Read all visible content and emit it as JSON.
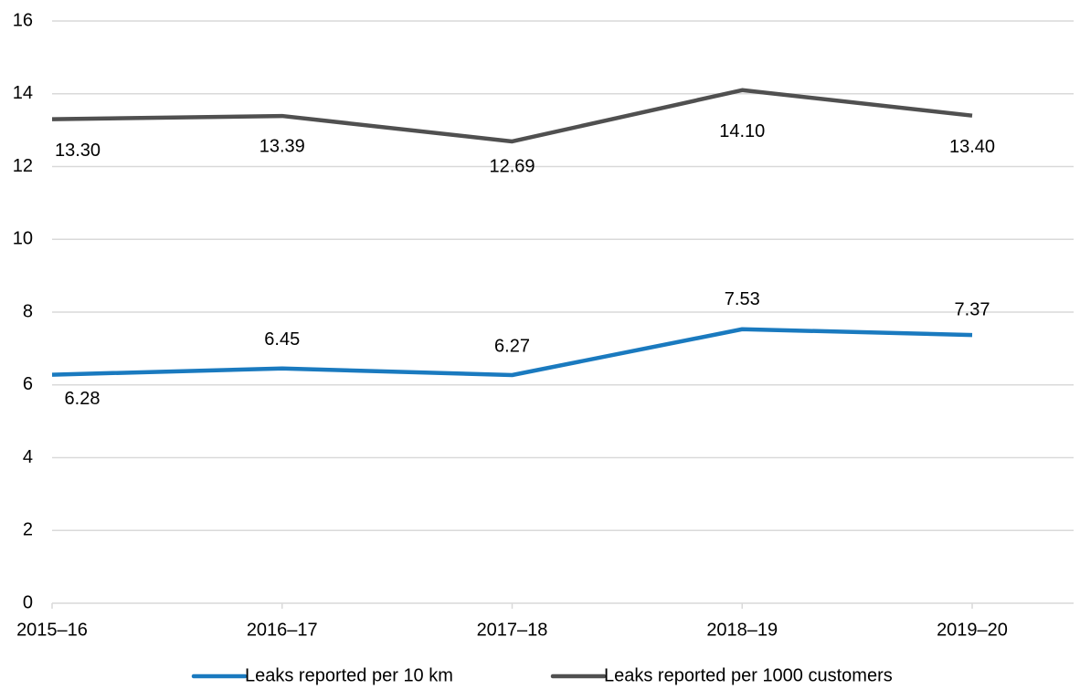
{
  "chart_data": {
    "type": "line",
    "categories": [
      "2015–16",
      "2016–17",
      "2017–18",
      "2018–19",
      "2019–20"
    ],
    "series": [
      {
        "name": "Leaks reported per 10 km",
        "color": "#1a7abf",
        "values": [
          6.28,
          6.45,
          6.27,
          7.53,
          7.37
        ]
      },
      {
        "name": "Leaks reported per 1000 customers",
        "color": "#505050",
        "values": [
          13.3,
          13.39,
          12.69,
          14.1,
          13.4
        ],
        "value_labels": [
          "13.30",
          "13.39",
          "12.69",
          "14.10",
          "13.40"
        ]
      }
    ],
    "ylim": [
      0,
      16
    ],
    "yticks": [
      0,
      2,
      4,
      6,
      8,
      10,
      12,
      14,
      16
    ],
    "grid": true,
    "legend": "bottom"
  }
}
